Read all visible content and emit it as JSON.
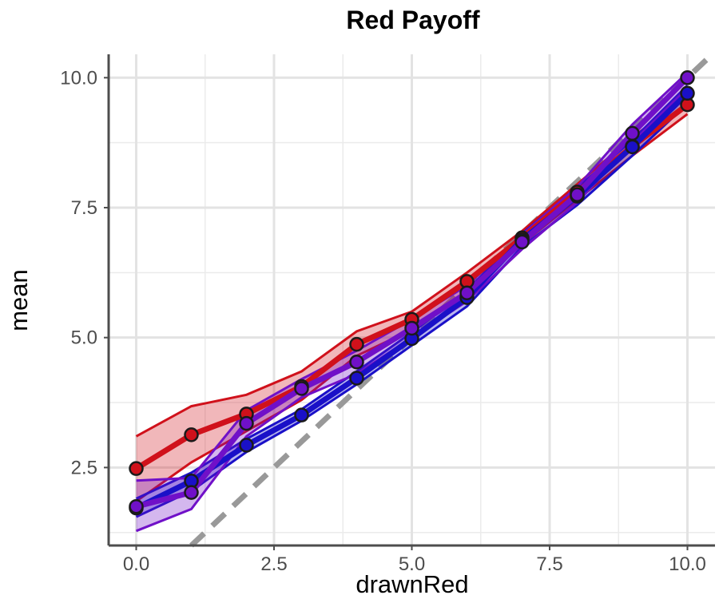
{
  "chart_data": {
    "type": "line",
    "title": "Red Payoff",
    "xlabel": "drawnRed",
    "ylabel": "mean",
    "xlim": [
      -0.5,
      10.5
    ],
    "ylim": [
      1.0,
      10.45
    ],
    "x_ticks": [
      "0.0",
      "2.5",
      "5.0",
      "7.5",
      "10.0"
    ],
    "y_ticks": [
      "2.5",
      "5.0",
      "7.5",
      "10.0"
    ],
    "grid": true,
    "reference_line": {
      "style": "dashed",
      "color": "#999999",
      "slope": 1,
      "intercept": 0
    },
    "series": [
      {
        "color": "#D0111B",
        "x": [
          0,
          1,
          2,
          3,
          4,
          5,
          6,
          7,
          8,
          9,
          10
        ],
        "y": [
          2.48,
          3.13,
          3.53,
          4.06,
          4.87,
          5.35,
          6.08,
          6.92,
          7.8,
          8.68,
          9.48
        ],
        "lower": [
          1.85,
          2.6,
          3.2,
          3.8,
          4.65,
          5.15,
          5.9,
          6.8,
          7.65,
          8.5,
          9.3
        ],
        "upper": [
          3.1,
          3.68,
          3.9,
          4.35,
          5.12,
          5.5,
          6.25,
          7.05,
          7.95,
          8.85,
          9.65
        ]
      },
      {
        "color": "#1A10C8",
        "x": [
          0,
          1,
          2,
          3,
          4,
          5,
          6,
          7,
          8,
          9,
          10
        ],
        "y": [
          1.72,
          2.24,
          2.93,
          3.51,
          4.22,
          4.98,
          5.77,
          6.88,
          7.72,
          8.67,
          9.7
        ],
        "lower": [
          1.55,
          2.05,
          2.8,
          3.4,
          4.1,
          4.85,
          5.6,
          6.75,
          7.55,
          8.5,
          9.5
        ],
        "upper": [
          1.9,
          2.4,
          3.05,
          3.62,
          4.35,
          5.1,
          5.9,
          7.0,
          7.88,
          8.8,
          9.85
        ]
      },
      {
        "color": "#7010C8",
        "x": [
          0,
          1,
          2,
          3,
          4,
          5,
          6,
          7,
          8,
          9,
          10
        ],
        "y": [
          1.75,
          2.02,
          3.35,
          4.02,
          4.53,
          5.18,
          5.86,
          6.84,
          7.75,
          8.93,
          10.0
        ],
        "lower": [
          1.28,
          1.7,
          3.1,
          3.85,
          4.3,
          5.0,
          5.7,
          6.7,
          7.6,
          8.75,
          9.8
        ],
        "upper": [
          2.25,
          2.3,
          3.6,
          4.2,
          4.75,
          5.35,
          6.0,
          6.98,
          7.9,
          9.1,
          10.1
        ]
      }
    ]
  }
}
